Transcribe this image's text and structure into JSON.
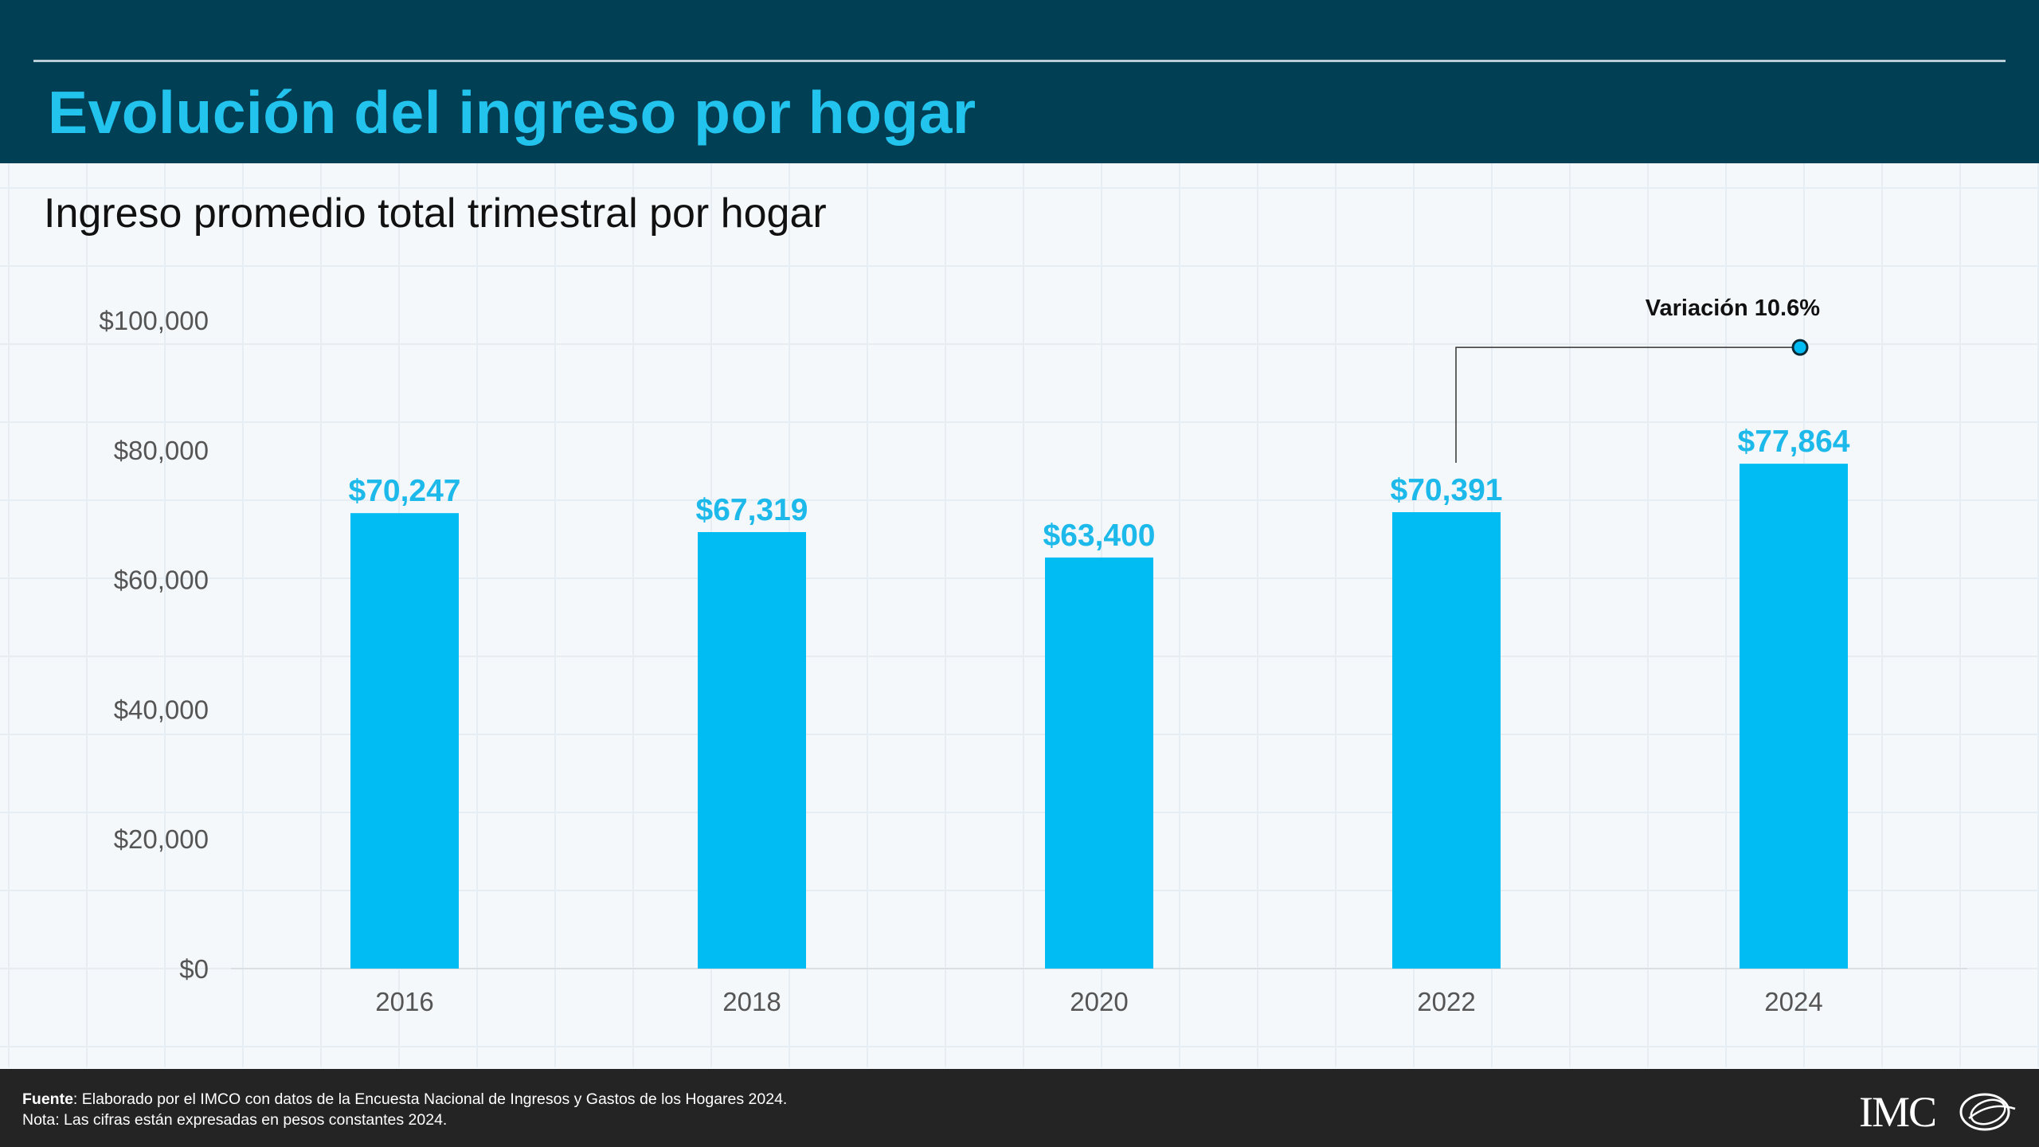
{
  "header": {
    "title": "Evolución del ingreso por hogar"
  },
  "subtitle": "Ingreso promedio total trimestral por hogar",
  "colors": {
    "header_bg": "#003f54",
    "title": "#22c4ee",
    "bar": "#00bcf2",
    "value_label": "#1cb9ea",
    "footer_bg": "#242424"
  },
  "chart_data": {
    "type": "bar",
    "categories": [
      "2016",
      "2018",
      "2020",
      "2022",
      "2024"
    ],
    "values": [
      70247,
      67319,
      63400,
      70391,
      77864
    ],
    "value_labels": [
      "$70,247",
      "$67,319",
      "$63,400",
      "$70,391",
      "$77,864"
    ],
    "ylim": [
      0,
      100000
    ],
    "y_ticks": [
      0,
      20000,
      40000,
      60000,
      80000,
      100000
    ],
    "y_tick_labels": [
      "$0",
      "$20,000",
      "$40,000",
      "$60,000",
      "$80,000",
      "$100,000"
    ],
    "annotation": {
      "text": "Variación 10.6%",
      "from_category": "2022",
      "to_category": "2024"
    },
    "legend": "none",
    "grid": false
  },
  "footer": {
    "source_label": "Fuente",
    "source_text": ": Elaborado por el IMCO con datos de la Encuesta Nacional de Ingresos y Gastos de los Hogares 2024.",
    "note": "Nota: Las cifras están expresadas en pesos constantes 2024.",
    "logo_text": "IMCO"
  }
}
